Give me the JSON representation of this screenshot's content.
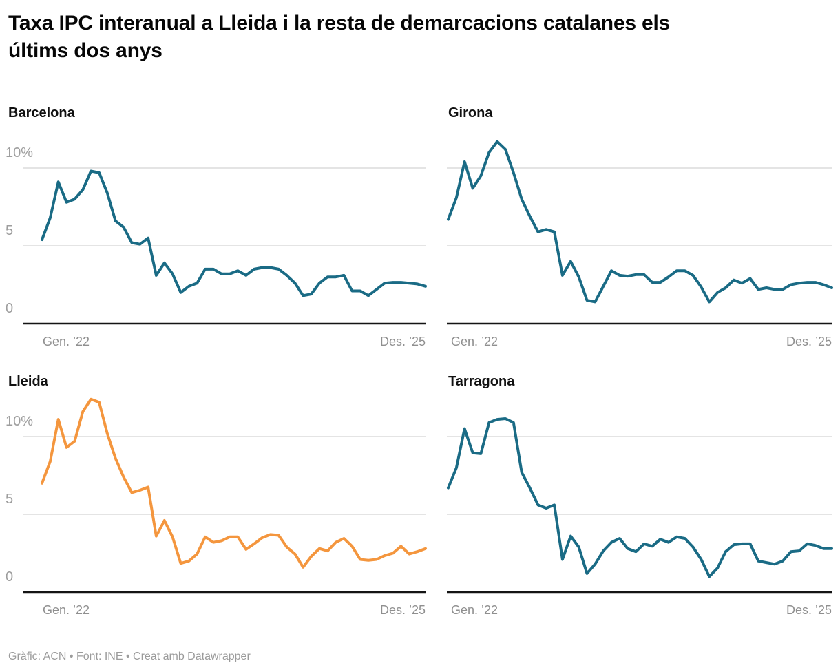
{
  "title": "Taxa IPC interanual a Lleida i la resta de demarcacions catalanes els últims dos anys",
  "footer": "Gràfic: ACN • Font: INE • Creat amb Datawrapper",
  "axis": {
    "y_ticks": [
      "10%",
      "5",
      "0"
    ],
    "x_start": "Gen. ’22",
    "x_end": "Des. ’25"
  },
  "colors": {
    "base": "#1A6B85",
    "highlight": "#F4963E",
    "grid": "#E4E4E4",
    "axis_line": "#141414",
    "tick_text": "#9E9E9E"
  },
  "chart_data": [
    {
      "type": "line",
      "title": "Barcelona",
      "color": "#1A6B85",
      "x_unit": "month",
      "x_start_label": "Gen. ’22",
      "x_end_label": "Des. ’25",
      "ylim": [
        0,
        13
      ],
      "y_gridlines": [
        10,
        5
      ],
      "y_tick_labels": [
        "10%",
        "5",
        "0"
      ],
      "values": [
        5.4,
        6.8,
        9.1,
        7.8,
        8.0,
        8.6,
        9.8,
        9.7,
        8.4,
        6.6,
        6.2,
        5.2,
        5.1,
        5.5,
        3.1,
        3.9,
        3.2,
        2.0,
        2.4,
        2.6,
        3.5,
        3.5,
        3.2,
        3.2,
        3.4,
        3.1,
        3.5,
        3.6,
        3.6,
        3.5,
        3.1,
        2.6,
        1.8,
        1.9,
        2.6,
        3.0,
        3.0,
        3.1,
        2.1,
        2.1,
        1.8,
        2.2,
        2.6,
        2.65,
        2.65,
        2.6,
        2.55,
        2.4
      ]
    },
    {
      "type": "line",
      "title": "Girona",
      "color": "#1A6B85",
      "x_unit": "month",
      "x_start_label": "Gen. ’22",
      "x_end_label": "Des. ’25",
      "ylim": [
        0,
        13
      ],
      "y_gridlines": [
        10,
        5
      ],
      "y_tick_labels": [
        "10%",
        "5",
        "0"
      ],
      "values": [
        6.7,
        8.1,
        10.4,
        8.7,
        9.5,
        11.0,
        11.7,
        11.2,
        9.7,
        8.0,
        6.9,
        5.9,
        6.05,
        5.9,
        3.1,
        4.0,
        3.0,
        1.5,
        1.4,
        2.4,
        3.4,
        3.1,
        3.05,
        3.15,
        3.15,
        2.65,
        2.65,
        3.0,
        3.4,
        3.4,
        3.1,
        2.35,
        1.4,
        2.0,
        2.3,
        2.8,
        2.6,
        2.9,
        2.2,
        2.3,
        2.2,
        2.2,
        2.5,
        2.6,
        2.65,
        2.65,
        2.5,
        2.3
      ]
    },
    {
      "type": "line",
      "title": "Lleida",
      "color": "#F4963E",
      "x_unit": "month",
      "x_start_label": "Gen. ’22",
      "x_end_label": "Des. ’25",
      "ylim": [
        0,
        13
      ],
      "y_gridlines": [
        10,
        5
      ],
      "y_tick_labels": [
        "10%",
        "5",
        "0"
      ],
      "values": [
        7.0,
        8.4,
        11.1,
        9.3,
        9.7,
        11.6,
        12.4,
        12.2,
        10.2,
        8.6,
        7.4,
        6.4,
        6.55,
        6.75,
        3.6,
        4.6,
        3.55,
        1.85,
        2.0,
        2.45,
        3.55,
        3.2,
        3.3,
        3.55,
        3.55,
        2.75,
        3.1,
        3.5,
        3.7,
        3.65,
        2.9,
        2.45,
        1.6,
        2.3,
        2.8,
        2.65,
        3.2,
        3.45,
        2.95,
        2.1,
        2.05,
        2.1,
        2.35,
        2.5,
        2.95,
        2.45,
        2.6,
        2.8
      ]
    },
    {
      "type": "line",
      "title": "Tarragona",
      "color": "#1A6B85",
      "x_unit": "month",
      "x_start_label": "Gen. ’22",
      "x_end_label": "Des. ’25",
      "ylim": [
        0,
        13
      ],
      "y_gridlines": [
        10,
        5
      ],
      "y_tick_labels": [
        "10%",
        "5",
        "0"
      ],
      "values": [
        6.7,
        8.0,
        10.5,
        8.95,
        8.9,
        10.9,
        11.1,
        11.15,
        10.9,
        7.7,
        6.7,
        5.6,
        5.4,
        5.6,
        2.1,
        3.6,
        2.9,
        1.2,
        1.8,
        2.65,
        3.2,
        3.45,
        2.8,
        2.6,
        3.1,
        2.95,
        3.4,
        3.2,
        3.55,
        3.45,
        2.9,
        2.1,
        1.0,
        1.55,
        2.6,
        3.05,
        3.1,
        3.1,
        2.0,
        1.9,
        1.8,
        2.0,
        2.6,
        2.65,
        3.1,
        3.0,
        2.8,
        2.8
      ]
    }
  ]
}
